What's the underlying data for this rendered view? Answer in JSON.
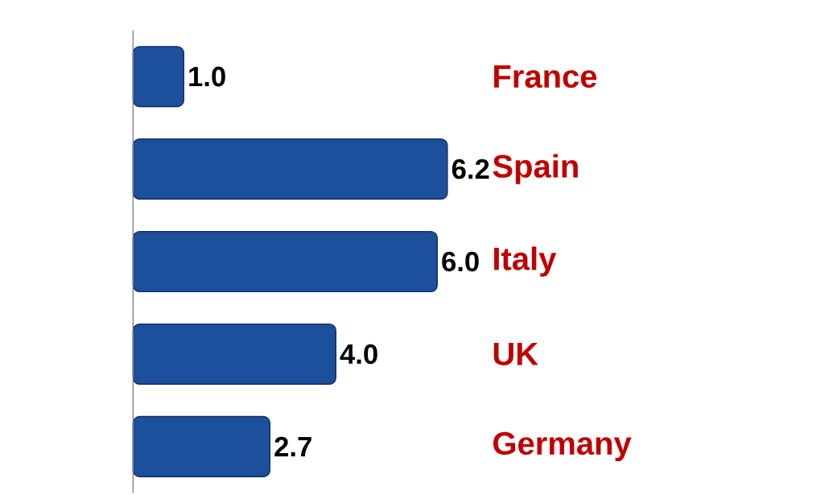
{
  "chart_data": {
    "type": "bar",
    "orientation": "horizontal",
    "categories": [
      "France",
      "Spain",
      "Italy",
      "UK",
      "Germany"
    ],
    "values": [
      1.0,
      6.2,
      6.0,
      4.0,
      2.7
    ],
    "color": "#1c4f9c",
    "value_labels": [
      "1.0",
      "6.2",
      "6.0",
      "4.0",
      "2.7"
    ]
  }
}
